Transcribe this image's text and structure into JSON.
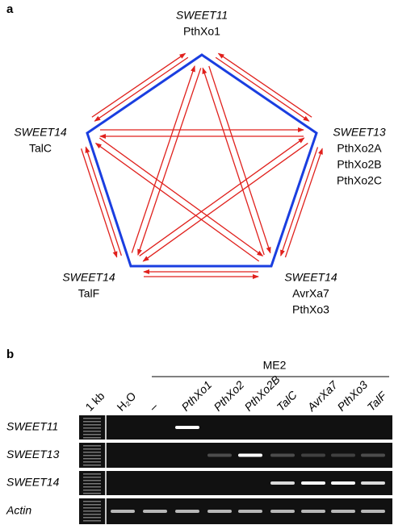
{
  "panel_a": {
    "label": "a",
    "nodes": [
      {
        "gene": "SWEET11",
        "effectors": [
          "PthXo1"
        ]
      },
      {
        "gene": "SWEET13",
        "effectors": [
          "PthXo2A",
          "PthXo2B",
          "PthXo2C"
        ]
      },
      {
        "gene": "SWEET14",
        "effectors": [
          "AvrXa7",
          "PthXo3"
        ]
      },
      {
        "gene": "SWEET14",
        "effectors": [
          "TalF"
        ]
      },
      {
        "gene": "SWEET14",
        "effectors": [
          "TalC"
        ]
      }
    ]
  },
  "panel_b": {
    "label": "b",
    "group_label": "ME2",
    "lanes": [
      "1 kb",
      "H₂O",
      "–",
      "PthXo1",
      "PthXo2",
      "PthXo2B",
      "TalC",
      "AvrXa7",
      "PthXo3",
      "TalF"
    ],
    "rows": [
      "SWEET11",
      "SWEET13",
      "SWEET14",
      "Actin"
    ]
  }
}
